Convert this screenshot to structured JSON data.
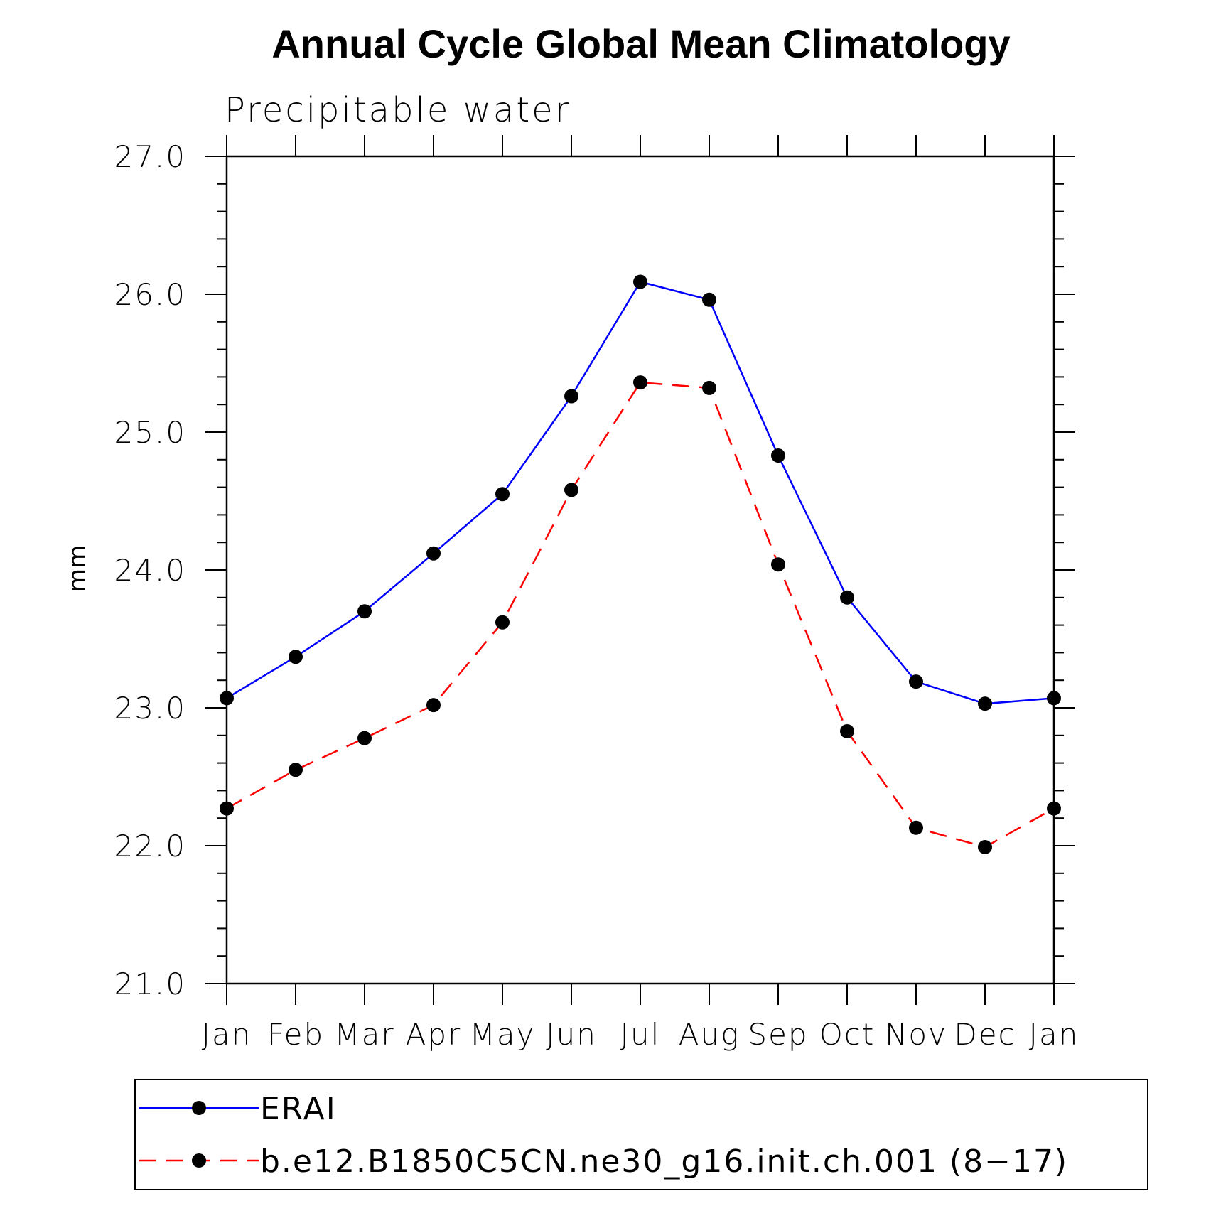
{
  "chart_data": {
    "type": "line",
    "title": "Annual Cycle Global Mean Climatology",
    "subtitle": "Precipitable water",
    "xlabel": "",
    "ylabel": "mm",
    "ylim": [
      21.0,
      27.0
    ],
    "yticks": [
      "21.0",
      "22.0",
      "23.0",
      "24.0",
      "25.0",
      "26.0",
      "27.0"
    ],
    "categories": [
      "Jan",
      "Feb",
      "Mar",
      "Apr",
      "May",
      "Jun",
      "Jul",
      "Aug",
      "Sep",
      "Oct",
      "Nov",
      "Dec",
      "Jan"
    ],
    "series": [
      {
        "name": "ERAI",
        "color": "#0000ff",
        "dash": "solid",
        "values": [
          23.07,
          23.37,
          23.7,
          24.12,
          24.55,
          25.26,
          26.09,
          25.96,
          24.83,
          23.8,
          23.19,
          23.03,
          23.07
        ]
      },
      {
        "name": "b.e12.B1850C5CN.ne30_g16.init.ch.001 (8−17)",
        "color": "#ff0000",
        "dash": "dashed",
        "values": [
          22.27,
          22.55,
          22.78,
          23.02,
          23.62,
          24.58,
          25.36,
          25.32,
          24.04,
          22.83,
          22.13,
          21.99,
          22.27
        ]
      }
    ],
    "legend_position": "bottom"
  }
}
